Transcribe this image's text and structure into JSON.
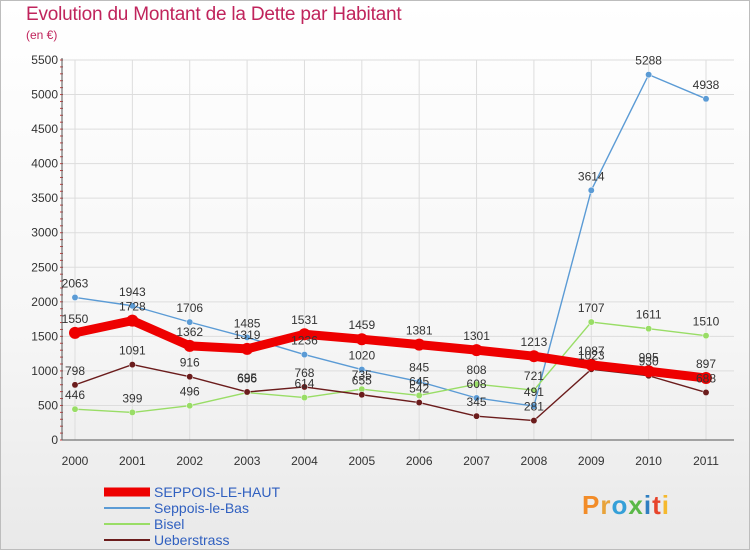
{
  "chart_data": {
    "type": "line",
    "title": "Evolution du Montant de la Dette par Habitant",
    "subtitle": "(en €)",
    "x": [
      "2000",
      "2001",
      "2002",
      "2003",
      "2004",
      "2005",
      "2006",
      "2007",
      "2008",
      "2009",
      "2010",
      "2011"
    ],
    "ylim": [
      0,
      5500
    ],
    "yticks": [
      0,
      500,
      1000,
      1500,
      2000,
      2500,
      3000,
      3500,
      4000,
      4500,
      5000,
      5500
    ],
    "grid": true,
    "legend_position": "bottom-left",
    "series": [
      {
        "name": "SEPPOIS-LE-HAUT",
        "color": "#ee0000",
        "values": [
          1550,
          1728,
          1362,
          1319,
          1531,
          1459,
          1381,
          1301,
          1213,
          1087,
          995,
          897
        ]
      },
      {
        "name": "Seppois-le-Bas",
        "color": "#5b9bd5",
        "values": [
          2063,
          1943,
          1706,
          1485,
          1236,
          1020,
          845,
          608,
          491,
          3614,
          5288,
          4938
        ]
      },
      {
        "name": "Bisel",
        "color": "#99dd66",
        "values": [
          446,
          399,
          496,
          686,
          614,
          735,
          645,
          808,
          721,
          1707,
          1611,
          1510
        ]
      },
      {
        "name": "Ueberstrass",
        "color": "#6b1c1c",
        "values": [
          798,
          1091,
          916,
          695,
          768,
          655,
          542,
          345,
          281,
          1023,
          930,
          688
        ]
      }
    ]
  },
  "logo": {
    "letters": [
      "P",
      "r",
      "o",
      "x",
      "i",
      "t",
      "i"
    ]
  }
}
